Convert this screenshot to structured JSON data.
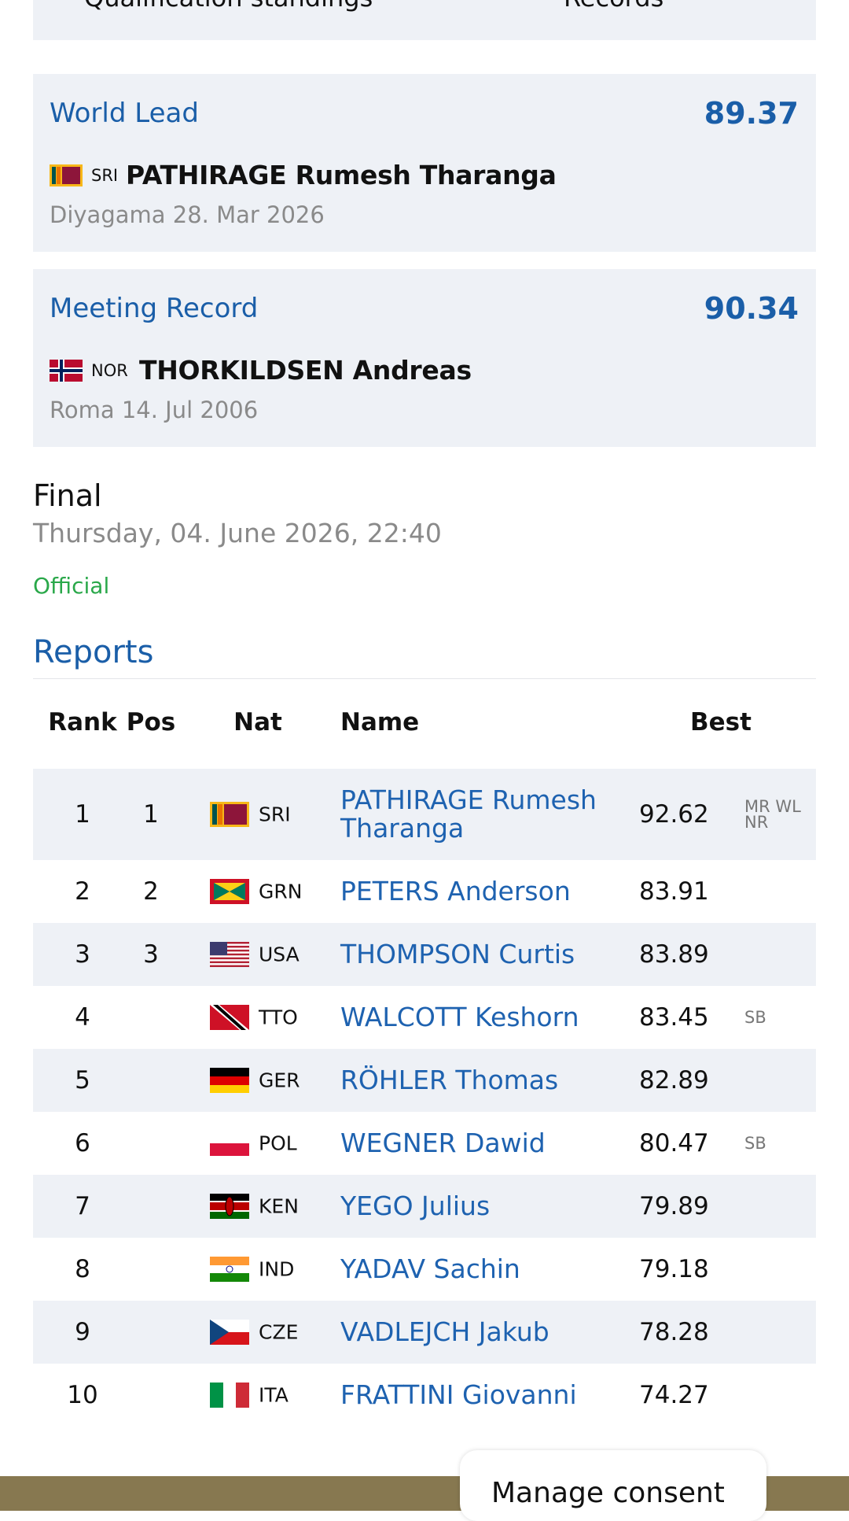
{
  "tabs": [
    "Qualification standings",
    "Records"
  ],
  "world_lead": {
    "label": "World Lead",
    "mark": "89.37",
    "country": "SRI",
    "athlete": "PATHIRAGE Rumesh Tharanga",
    "venue_date": "Diyagama 28. Mar 2026"
  },
  "meeting_record": {
    "label": "Meeting Record",
    "mark": "90.34",
    "country": "NOR",
    "athlete": "THORKILDSEN Andreas",
    "venue_date": "Roma 14. Jul 2006"
  },
  "event": {
    "round": "Final",
    "datetime": "Thursday, 04. June 2026, 22:40",
    "status": "Official",
    "reports": "Reports"
  },
  "table": {
    "headers": [
      "Rank",
      "Pos",
      "Nat",
      "Name",
      "Best"
    ],
    "rows": [
      {
        "rank": "1",
        "pos": "1",
        "nat": "SRI",
        "name": "PATHIRAGE Rumesh Tharanga",
        "best": "92.62",
        "notes": "MR WL NR"
      },
      {
        "rank": "2",
        "pos": "2",
        "nat": "GRN",
        "name": "PETERS Anderson",
        "best": "83.91"
      },
      {
        "rank": "3",
        "pos": "3",
        "nat": "USA",
        "name": "THOMPSON Curtis",
        "best": "83.89"
      },
      {
        "rank": "4",
        "nat": "TTO",
        "name": "WALCOTT Keshorn",
        "best": "83.45",
        "notes": "SB"
      },
      {
        "rank": "5",
        "nat": "GER",
        "name": "RÖHLER Thomas",
        "best": "82.89"
      },
      {
        "rank": "6",
        "nat": "POL",
        "name": "WEGNER Dawid",
        "best": "80.47",
        "notes": "SB"
      },
      {
        "rank": "7",
        "nat": "KEN",
        "name": "YEGO Julius",
        "best": "79.89"
      },
      {
        "rank": "8",
        "nat": "IND",
        "name": "YADAV Sachin",
        "best": "79.18"
      },
      {
        "rank": "9",
        "nat": "CZE",
        "name": "VADLEJCH Jakub",
        "best": "78.28"
      },
      {
        "rank": "10",
        "nat": "ITA",
        "name": "FRATTINI Giovanni",
        "best": "74.27"
      }
    ]
  },
  "consent": "Manage consent"
}
